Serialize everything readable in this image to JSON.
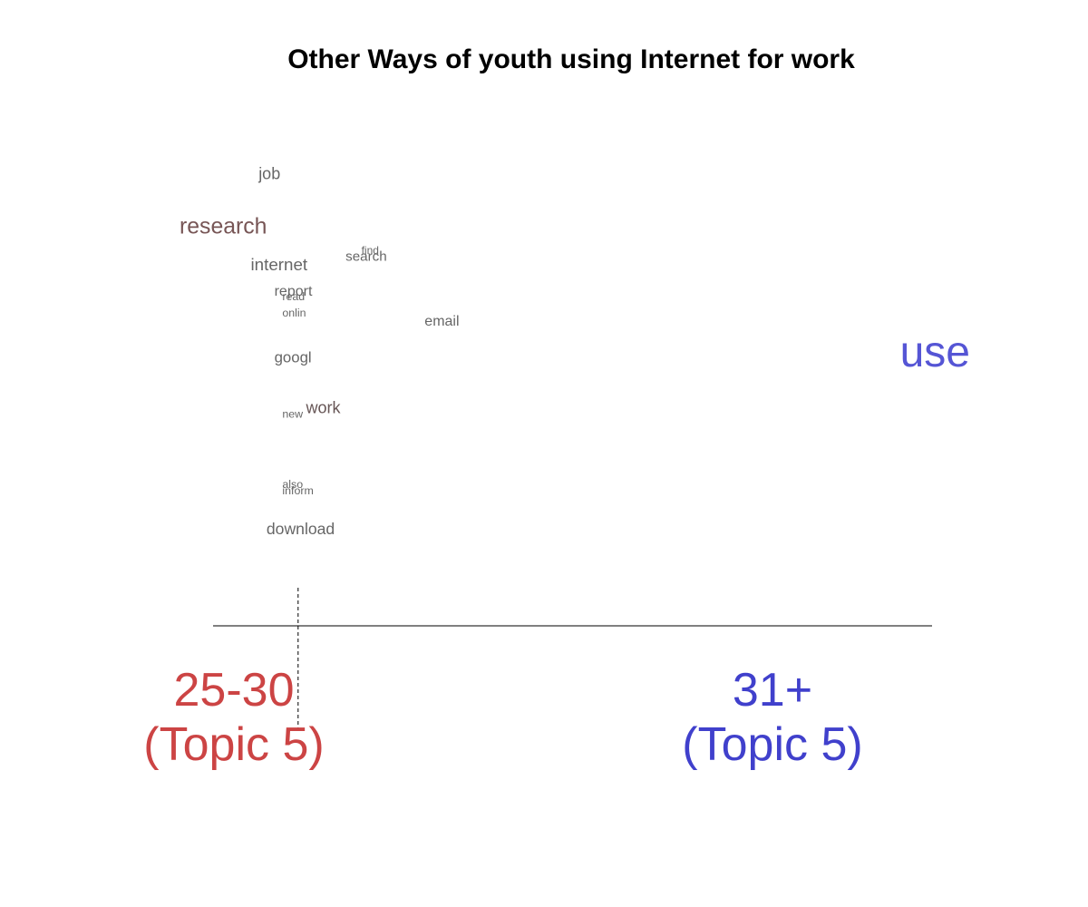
{
  "chart_data": {
    "type": "scatter",
    "title": "Other Ways of youth using Internet for work",
    "colors": {
      "left_group": "#cc4444",
      "right_group": "#4040cc",
      "word_gray": "#555555",
      "axis": "#000000"
    },
    "groups": {
      "left": {
        "line1": "25-30",
        "line2": "(Topic 5)"
      },
      "right": {
        "line1": "31+",
        "line2": "(Topic 5)"
      }
    },
    "words": [
      {
        "text": "job",
        "x": 0.1,
        "y": 0.93,
        "size": 0.25,
        "color": "#666666"
      },
      {
        "text": "research",
        "x": 0.0,
        "y": 0.8,
        "size": 0.42,
        "color": "#775555"
      },
      {
        "text": "find",
        "x": 0.23,
        "y": 0.74,
        "size": 0.1,
        "color": "#666666"
      },
      {
        "text": "search",
        "x": 0.21,
        "y": 0.725,
        "size": 0.18,
        "color": "#666666"
      },
      {
        "text": "internet",
        "x": 0.09,
        "y": 0.705,
        "size": 0.27,
        "color": "#666666"
      },
      {
        "text": "report",
        "x": 0.12,
        "y": 0.64,
        "size": 0.2,
        "color": "#666666"
      },
      {
        "text": "read",
        "x": 0.13,
        "y": 0.625,
        "size": 0.11,
        "color": "#666666"
      },
      {
        "text": "onlin",
        "x": 0.13,
        "y": 0.585,
        "size": 0.11,
        "color": "#666666"
      },
      {
        "text": "email",
        "x": 0.31,
        "y": 0.565,
        "size": 0.2,
        "color": "#666666"
      },
      {
        "text": "googl",
        "x": 0.12,
        "y": 0.475,
        "size": 0.22,
        "color": "#666666"
      },
      {
        "text": "use",
        "x": 1.0,
        "y": 0.49,
        "size": 1.0,
        "color": "#5555d5"
      },
      {
        "text": "work",
        "x": 0.16,
        "y": 0.35,
        "size": 0.25,
        "color": "#665555"
      },
      {
        "text": "new",
        "x": 0.13,
        "y": 0.335,
        "size": 0.11,
        "color": "#666666"
      },
      {
        "text": "also",
        "x": 0.13,
        "y": 0.16,
        "size": 0.11,
        "color": "#666666"
      },
      {
        "text": "inform",
        "x": 0.13,
        "y": 0.145,
        "size": 0.11,
        "color": "#666666"
      },
      {
        "text": "download",
        "x": 0.11,
        "y": 0.05,
        "size": 0.24,
        "color": "#666666"
      }
    ],
    "xlim": [
      0,
      1
    ],
    "ylim": [
      0,
      1
    ],
    "divider_x": 0.15,
    "grid": false
  }
}
